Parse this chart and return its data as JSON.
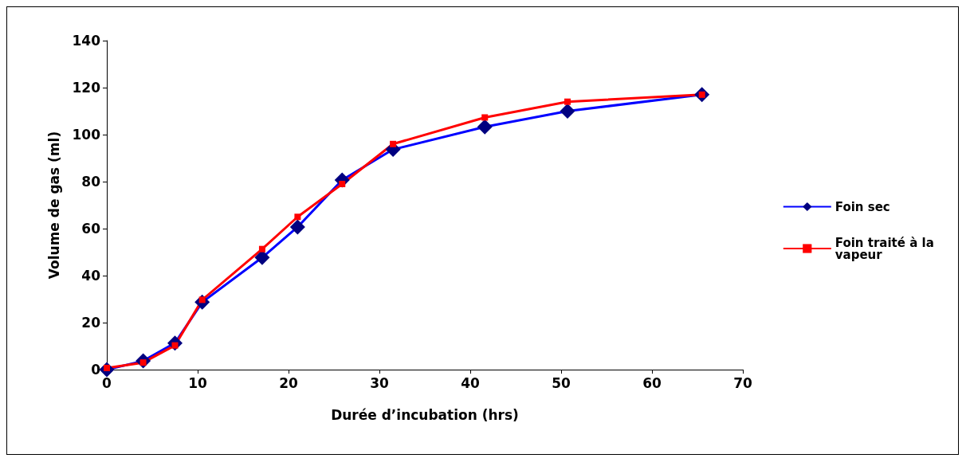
{
  "chart_data": {
    "type": "line",
    "xlabel": "Durée d’incubation (hrs)",
    "ylabel": "Volume de gas (ml)",
    "xlim": [
      0,
      70
    ],
    "xticks": [
      0,
      10,
      20,
      30,
      40,
      50,
      60,
      70
    ],
    "ylim": [
      0,
      140
    ],
    "yticks": [
      0,
      20,
      40,
      60,
      80,
      100,
      120,
      140
    ],
    "grid": false,
    "legend": "right",
    "x": [
      0,
      4.0,
      7.5,
      10.5,
      17.1,
      21.0,
      25.9,
      31.5,
      41.6,
      50.7,
      65.5
    ],
    "series": [
      {
        "name": "Foin sec",
        "color": "#0000ff",
        "marker": "diamond",
        "values": [
          0,
          3.7,
          11.3,
          28.7,
          47.7,
          60.7,
          80.7,
          93.7,
          103.3,
          110,
          117
        ]
      },
      {
        "name": "Foin traité à la vapeur",
        "color": "#ff0000",
        "marker": "square",
        "values": [
          0.7,
          3,
          10.3,
          29.7,
          51.3,
          65,
          79,
          96,
          107.3,
          114,
          117
        ]
      }
    ]
  }
}
